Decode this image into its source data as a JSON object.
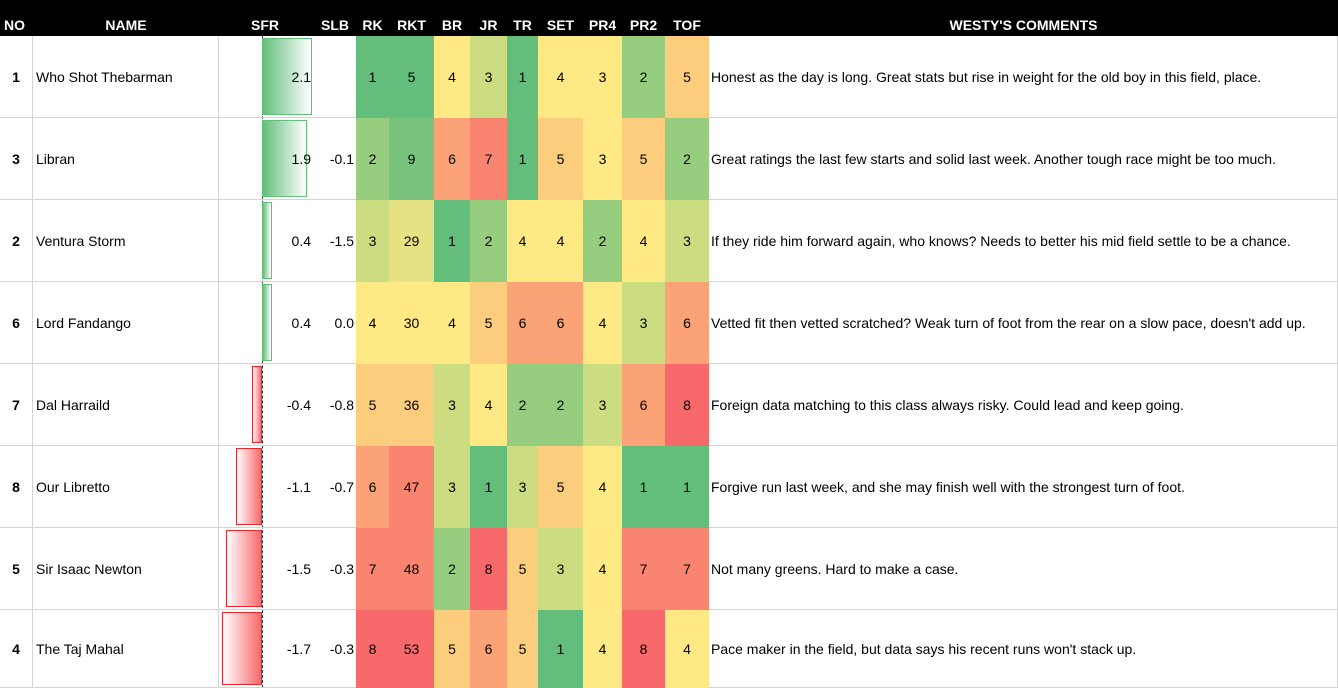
{
  "headers": [
    "NO",
    "NAME",
    "SFR",
    "SLB",
    "RK",
    "RKT",
    "BR",
    "JR",
    "TR",
    "SET",
    "PR4",
    "PR2",
    "TOF",
    "WESTY'S COMMENTS"
  ],
  "sfr_range": [
    -1.7,
    2.1
  ],
  "rows": [
    {
      "no": "1",
      "name": "Who Shot Thebarman",
      "sfr": "2.1",
      "sfr_value": 2.1,
      "slb": "",
      "vals": [
        "1",
        "5",
        "4",
        "3",
        "1",
        "4",
        "3",
        "2",
        "5"
      ],
      "colors": [
        "#63be7b",
        "#63be7b",
        "#ffe984",
        "#cbdc81",
        "#63be7b",
        "#ffe984",
        "#ffe984",
        "#97cd7e",
        "#fdcd7e"
      ],
      "comment": "Honest as the day is long. Great stats but rise in weight for the old boy in this field, place."
    },
    {
      "no": "3",
      "name": "Libran",
      "sfr": "1.9",
      "sfr_value": 1.9,
      "slb": "-0.1",
      "vals": [
        "2",
        "9",
        "6",
        "7",
        "1",
        "5",
        "3",
        "5",
        "2"
      ],
      "colors": [
        "#97cd7e",
        "#79c37c",
        "#fba276",
        "#f98570",
        "#63be7b",
        "#fdcd7e",
        "#ffe984",
        "#fdcd7e",
        "#97cd7e"
      ],
      "comment": "Great ratings the last few starts and solid last week. Another tough race might be too much."
    },
    {
      "no": "2",
      "name": "Ventura Storm",
      "sfr": "0.4",
      "sfr_value": 0.4,
      "slb": "-1.5",
      "vals": [
        "3",
        "29",
        "1",
        "2",
        "4",
        "4",
        "2",
        "4",
        "3"
      ],
      "colors": [
        "#cbdc81",
        "#e6e283",
        "#63be7b",
        "#97cd7e",
        "#ffe984",
        "#ffe984",
        "#97cd7e",
        "#ffe984",
        "#cbdc81"
      ],
      "comment": "If they ride him forward again, who knows? Needs to better his mid field settle to be a chance."
    },
    {
      "no": "6",
      "name": "Lord Fandango",
      "sfr": "0.4",
      "sfr_value": 0.4,
      "slb": "0.0",
      "vals": [
        "4",
        "30",
        "4",
        "5",
        "6",
        "6",
        "4",
        "3",
        "6"
      ],
      "colors": [
        "#ffe984",
        "#ffe984",
        "#ffe984",
        "#fdcd7e",
        "#fba276",
        "#fba276",
        "#ffe984",
        "#cbdc81",
        "#fba276"
      ],
      "comment": "Vetted fit then vetted scratched? Weak turn of foot from the rear on a slow pace, doesn't add up."
    },
    {
      "no": "7",
      "name": "Dal Harraild",
      "sfr": "-0.4",
      "sfr_value": -0.4,
      "slb": "-0.8",
      "vals": [
        "5",
        "36",
        "3",
        "4",
        "2",
        "2",
        "3",
        "6",
        "8"
      ],
      "colors": [
        "#fdcd7e",
        "#fdcd7e",
        "#cbdc81",
        "#ffe984",
        "#97cd7e",
        "#97cd7e",
        "#cbdc81",
        "#fba276",
        "#f8696b"
      ],
      "comment": "Foreign data matching to this class always risky. Could lead and keep going."
    },
    {
      "no": "8",
      "name": "Our Libretto",
      "sfr": "-1.1",
      "sfr_value": -1.1,
      "slb": "-0.7",
      "vals": [
        "6",
        "47",
        "3",
        "1",
        "3",
        "5",
        "4",
        "1",
        "1"
      ],
      "colors": [
        "#fba276",
        "#f98570",
        "#cbdc81",
        "#63be7b",
        "#cbdc81",
        "#fdcd7e",
        "#ffe984",
        "#63be7b",
        "#63be7b"
      ],
      "comment": "Forgive run last week, and she may finish well with the strongest turn of foot."
    },
    {
      "no": "5",
      "name": "Sir Isaac Newton",
      "sfr": "-1.5",
      "sfr_value": -1.5,
      "slb": "-0.3",
      "vals": [
        "7",
        "48",
        "2",
        "8",
        "5",
        "3",
        "4",
        "7",
        "7"
      ],
      "colors": [
        "#f98570",
        "#f98570",
        "#97cd7e",
        "#f8696b",
        "#fdcd7e",
        "#cbdc81",
        "#ffe984",
        "#f98570",
        "#f98570"
      ],
      "comment": "Not many greens. Hard to make a case."
    },
    {
      "no": "4",
      "name": "The Taj Mahal",
      "sfr": "-1.7",
      "sfr_value": -1.7,
      "slb": "-0.3",
      "vals": [
        "8",
        "53",
        "5",
        "6",
        "5",
        "1",
        "4",
        "8",
        "4"
      ],
      "colors": [
        "#f8696b",
        "#f8696b",
        "#fdcd7e",
        "#fba276",
        "#fdcd7e",
        "#63be7b",
        "#ffe984",
        "#f8696b",
        "#ffe984"
      ],
      "comment": "Pace maker in the field, but data says his recent runs won't stack up."
    }
  ]
}
